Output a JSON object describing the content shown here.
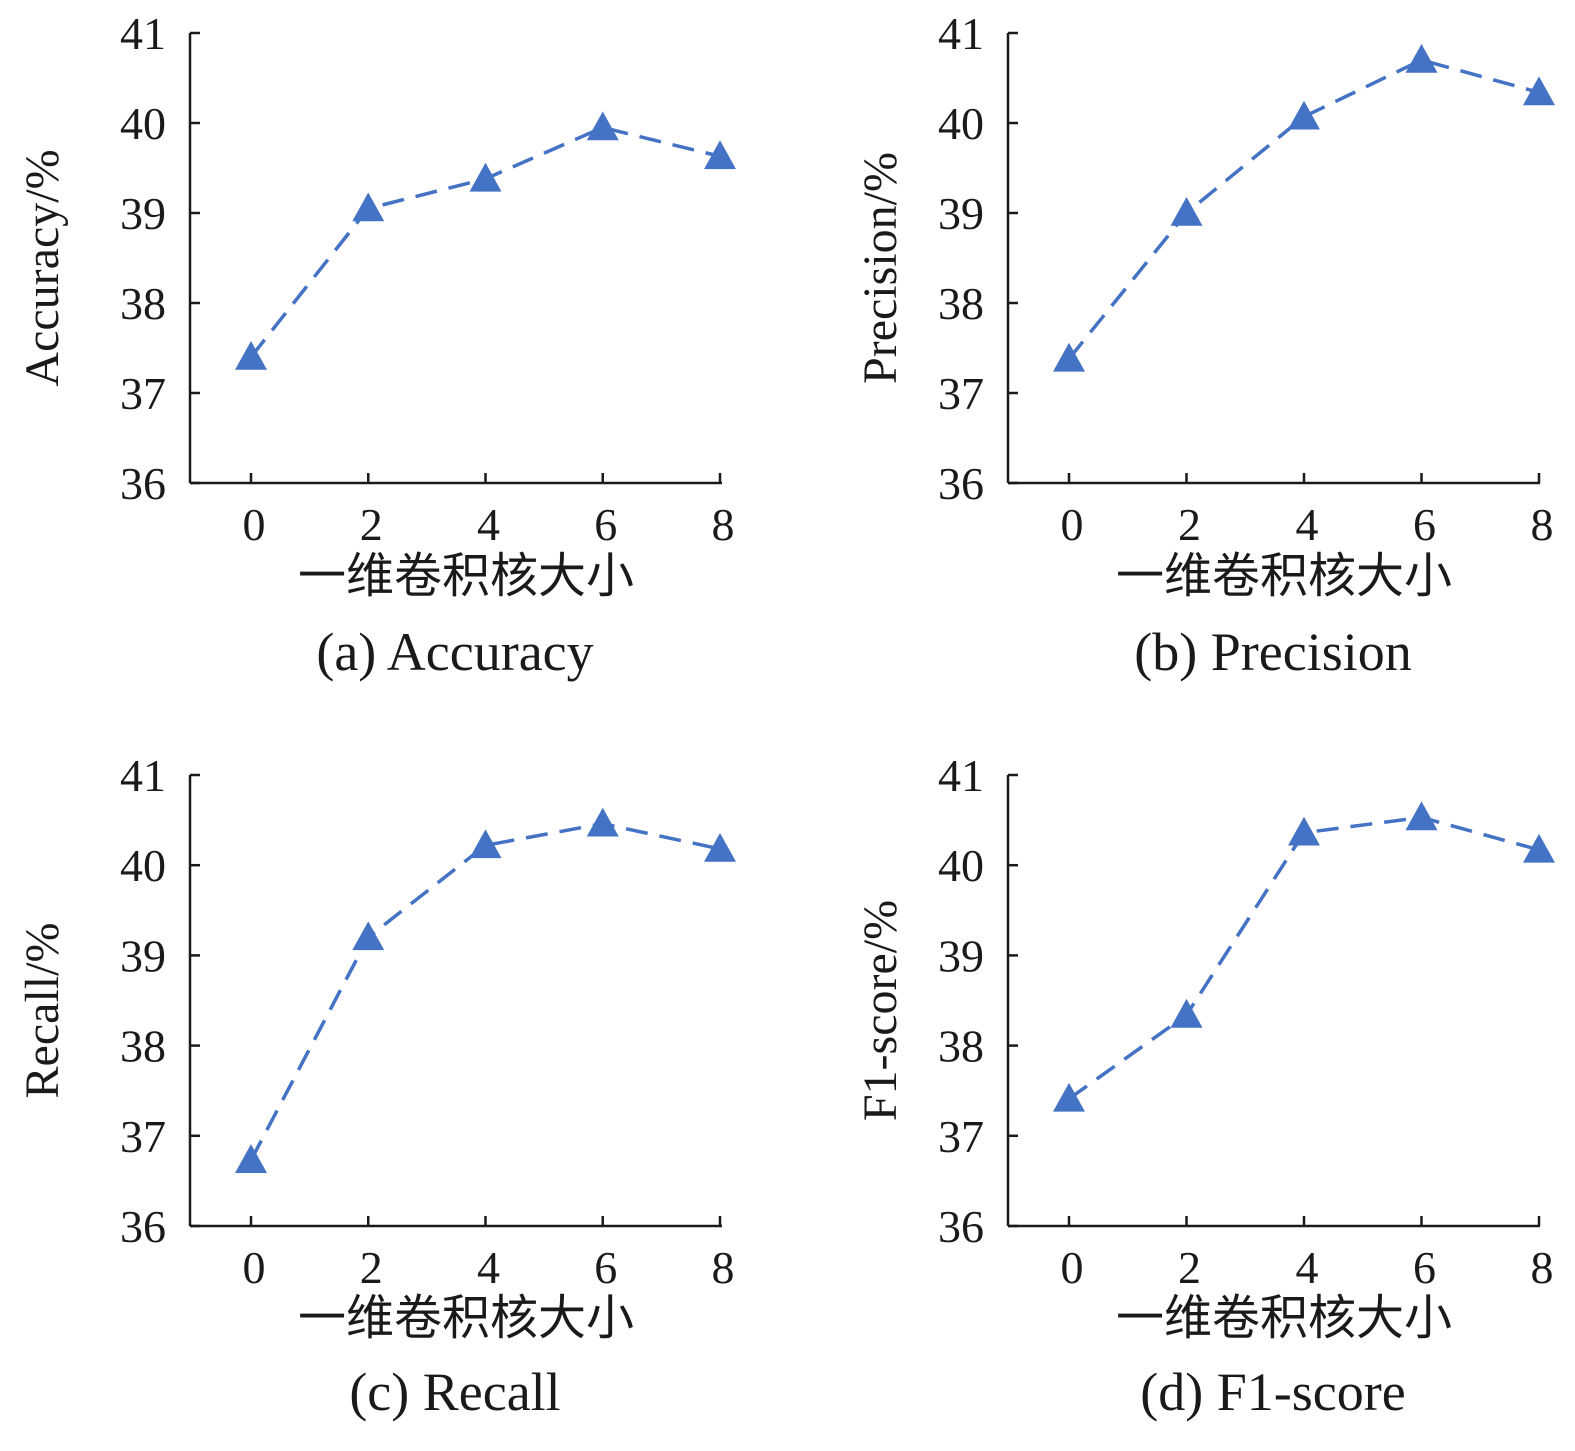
{
  "colors": {
    "series": "#4472C4",
    "axis": "#1a1a1a"
  },
  "chart_data": [
    {
      "type": "line",
      "caption": "(a) Accuracy",
      "xlabel": "一维卷积核大小",
      "ylabel": "Accuracy/%",
      "x": [
        0,
        2,
        4,
        6,
        8
      ],
      "values": [
        37.4,
        39.05,
        39.38,
        39.95,
        39.63
      ],
      "xticks": [
        "0",
        "2",
        "4",
        "6",
        "8"
      ],
      "yticks": [
        "36",
        "37",
        "38",
        "39",
        "40",
        "41"
      ],
      "ylim": [
        36,
        41
      ],
      "marker": "triangle",
      "line_style": "dashed"
    },
    {
      "type": "line",
      "caption": "(b) Precision",
      "xlabel": "一维卷积核大小",
      "ylabel": "Precision/%",
      "x": [
        0,
        2,
        4,
        6,
        8
      ],
      "values": [
        37.38,
        39.0,
        40.07,
        40.7,
        40.34
      ],
      "xticks": [
        "0",
        "2",
        "4",
        "6",
        "8"
      ],
      "yticks": [
        "36",
        "37",
        "38",
        "39",
        "40",
        "41"
      ],
      "ylim": [
        36,
        41
      ],
      "marker": "triangle",
      "line_style": "dashed"
    },
    {
      "type": "line",
      "caption": "(c) Recall",
      "xlabel": "一维卷积核大小",
      "ylabel": "Recall/%",
      "x": [
        0,
        2,
        4,
        6,
        8
      ],
      "values": [
        36.73,
        39.2,
        40.22,
        40.46,
        40.18
      ],
      "xticks": [
        "0",
        "2",
        "4",
        "6",
        "8"
      ],
      "yticks": [
        "36",
        "37",
        "38",
        "39",
        "40",
        "41"
      ],
      "ylim": [
        36,
        41
      ],
      "marker": "triangle",
      "line_style": "dashed"
    },
    {
      "type": "line",
      "caption": "(d) F1-score",
      "xlabel": "一维卷积核大小",
      "ylabel": "F1-score/%",
      "x": [
        0,
        2,
        4,
        6,
        8
      ],
      "values": [
        37.41,
        38.34,
        40.36,
        40.53,
        40.17
      ],
      "xticks": [
        "0",
        "2",
        "4",
        "6",
        "8"
      ],
      "yticks": [
        "36",
        "37",
        "38",
        "39",
        "40",
        "41"
      ],
      "ylim": [
        36,
        41
      ],
      "marker": "triangle",
      "line_style": "dashed"
    }
  ]
}
